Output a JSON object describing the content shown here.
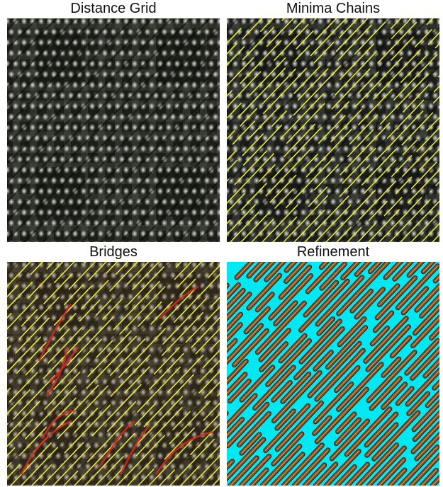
{
  "figure": {
    "panels": [
      {
        "title": "Distance Grid"
      },
      {
        "title": "Minima Chains"
      },
      {
        "title": "Bridges"
      },
      {
        "title": "Refinement"
      }
    ]
  },
  "colors": {
    "chain": "#e8e83a",
    "bridge": "#d8281e",
    "refine_bg": "#00e9f2",
    "refine_stroke": "#8a4a2a",
    "grid_dark": "#1a1d18",
    "grid_light": "#e6e6de"
  }
}
